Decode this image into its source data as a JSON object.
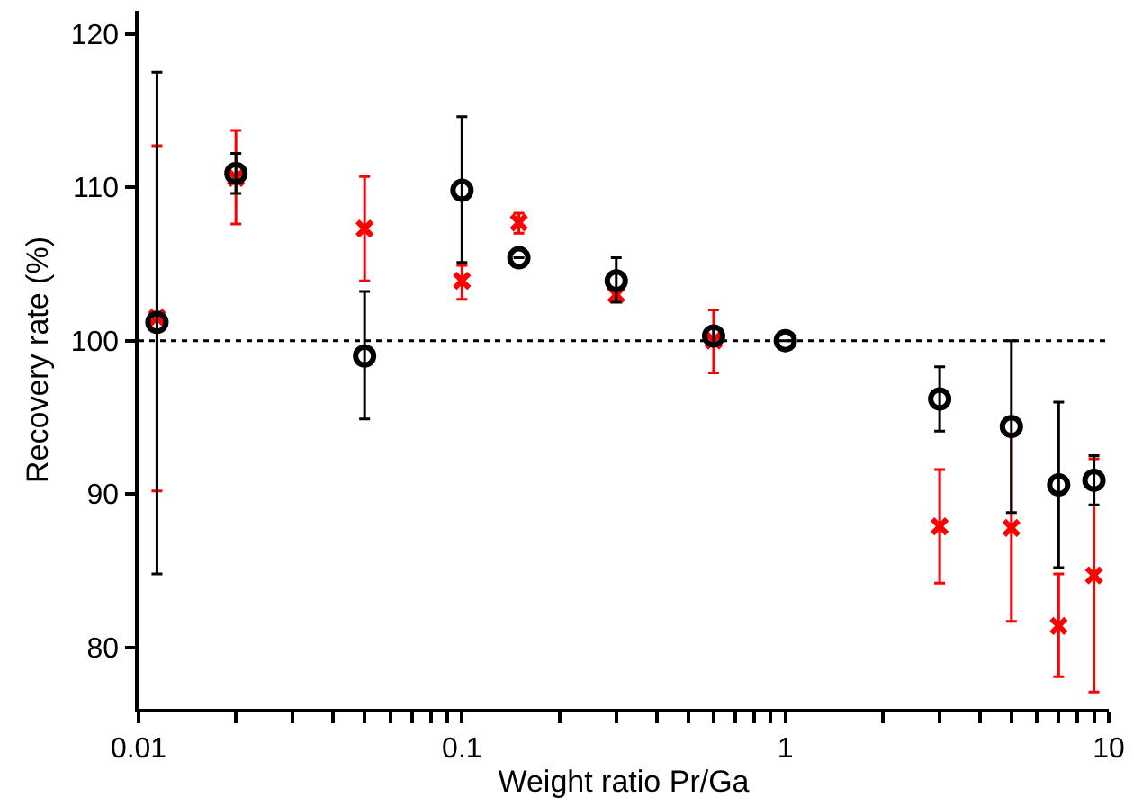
{
  "chart_data": {
    "type": "scatter",
    "xlabel": "Weight ratio Pr/Ga",
    "ylabel": "Recovery rate (%)",
    "log": "x",
    "grid": false,
    "xlim": [
      0.01,
      10
    ],
    "xticks": [
      {
        "value": 0.01,
        "label": "0.01"
      },
      {
        "value": 0.02,
        "label": null
      },
      {
        "value": 0.03,
        "label": null
      },
      {
        "value": 0.04,
        "label": null
      },
      {
        "value": 0.05,
        "label": null
      },
      {
        "value": 0.06,
        "label": null
      },
      {
        "value": 0.07,
        "label": null
      },
      {
        "value": 0.08,
        "label": null
      },
      {
        "value": 0.09,
        "label": null
      },
      {
        "value": 0.1,
        "label": "0.1"
      },
      {
        "value": 0.2,
        "label": null
      },
      {
        "value": 0.3,
        "label": null
      },
      {
        "value": 0.4,
        "label": null
      },
      {
        "value": 0.5,
        "label": null
      },
      {
        "value": 0.6,
        "label": null
      },
      {
        "value": 0.7,
        "label": null
      },
      {
        "value": 0.8,
        "label": null
      },
      {
        "value": 0.9,
        "label": null
      },
      1,
      {
        "value": 2,
        "label": null
      },
      {
        "value": 3,
        "label": null
      },
      {
        "value": 4,
        "label": null
      },
      {
        "value": 5,
        "label": null
      },
      {
        "value": 6,
        "label": null
      },
      {
        "value": 7,
        "label": null
      },
      {
        "value": 8,
        "label": null
      },
      {
        "value": 9,
        "label": null
      },
      10
    ],
    "ylim": [
      76,
      121.5
    ],
    "yticks": [
      80,
      90,
      100,
      110,
      120
    ],
    "ref_lines": [
      {
        "axis": "y",
        "value": 100,
        "color": "#000000",
        "line_style": "dotted"
      }
    ],
    "series": [
      {
        "color": "#ff0000",
        "marker": "cross",
        "x": [
          0.0114,
          0.02,
          0.05,
          0.1,
          0.15,
          0.3,
          0.6,
          1,
          3,
          5,
          7,
          9
        ],
        "values": [
          101.5,
          110.6,
          107.3,
          103.9,
          107.7,
          103.0,
          100.0,
          null,
          87.9,
          87.8,
          81.4,
          84.7
        ],
        "errors": [
          [
            90.2,
            112.7
          ],
          [
            107.6,
            113.7
          ],
          [
            103.9,
            110.7
          ],
          [
            102.7,
            104.9
          ],
          [
            107.0,
            108.3
          ],
          [
            102.6,
            103.4
          ],
          [
            97.9,
            102.0
          ],
          null,
          [
            84.2,
            91.6
          ],
          [
            81.7,
            93.9
          ],
          [
            78.1,
            84.8
          ],
          [
            77.1,
            92.3
          ]
        ]
      },
      {
        "color": "#000000",
        "marker": "circle",
        "x": [
          0.0114,
          0.02,
          0.05,
          0.1,
          0.15,
          0.3,
          0.6,
          1,
          3,
          5,
          7,
          9
        ],
        "values": [
          101.2,
          110.9,
          99.0,
          109.8,
          105.4,
          103.9,
          100.3,
          100.0,
          96.2,
          94.4,
          90.6,
          90.9
        ],
        "errors": [
          [
            84.8,
            117.5
          ],
          [
            109.6,
            112.2
          ],
          [
            94.9,
            103.2
          ],
          [
            105.1,
            114.6
          ],
          null,
          [
            102.5,
            105.4
          ],
          [
            99.8,
            100.8
          ],
          null,
          [
            94.1,
            98.3
          ],
          [
            88.8,
            100.0
          ],
          [
            85.2,
            96.0
          ],
          [
            89.3,
            92.5
          ]
        ]
      }
    ]
  }
}
